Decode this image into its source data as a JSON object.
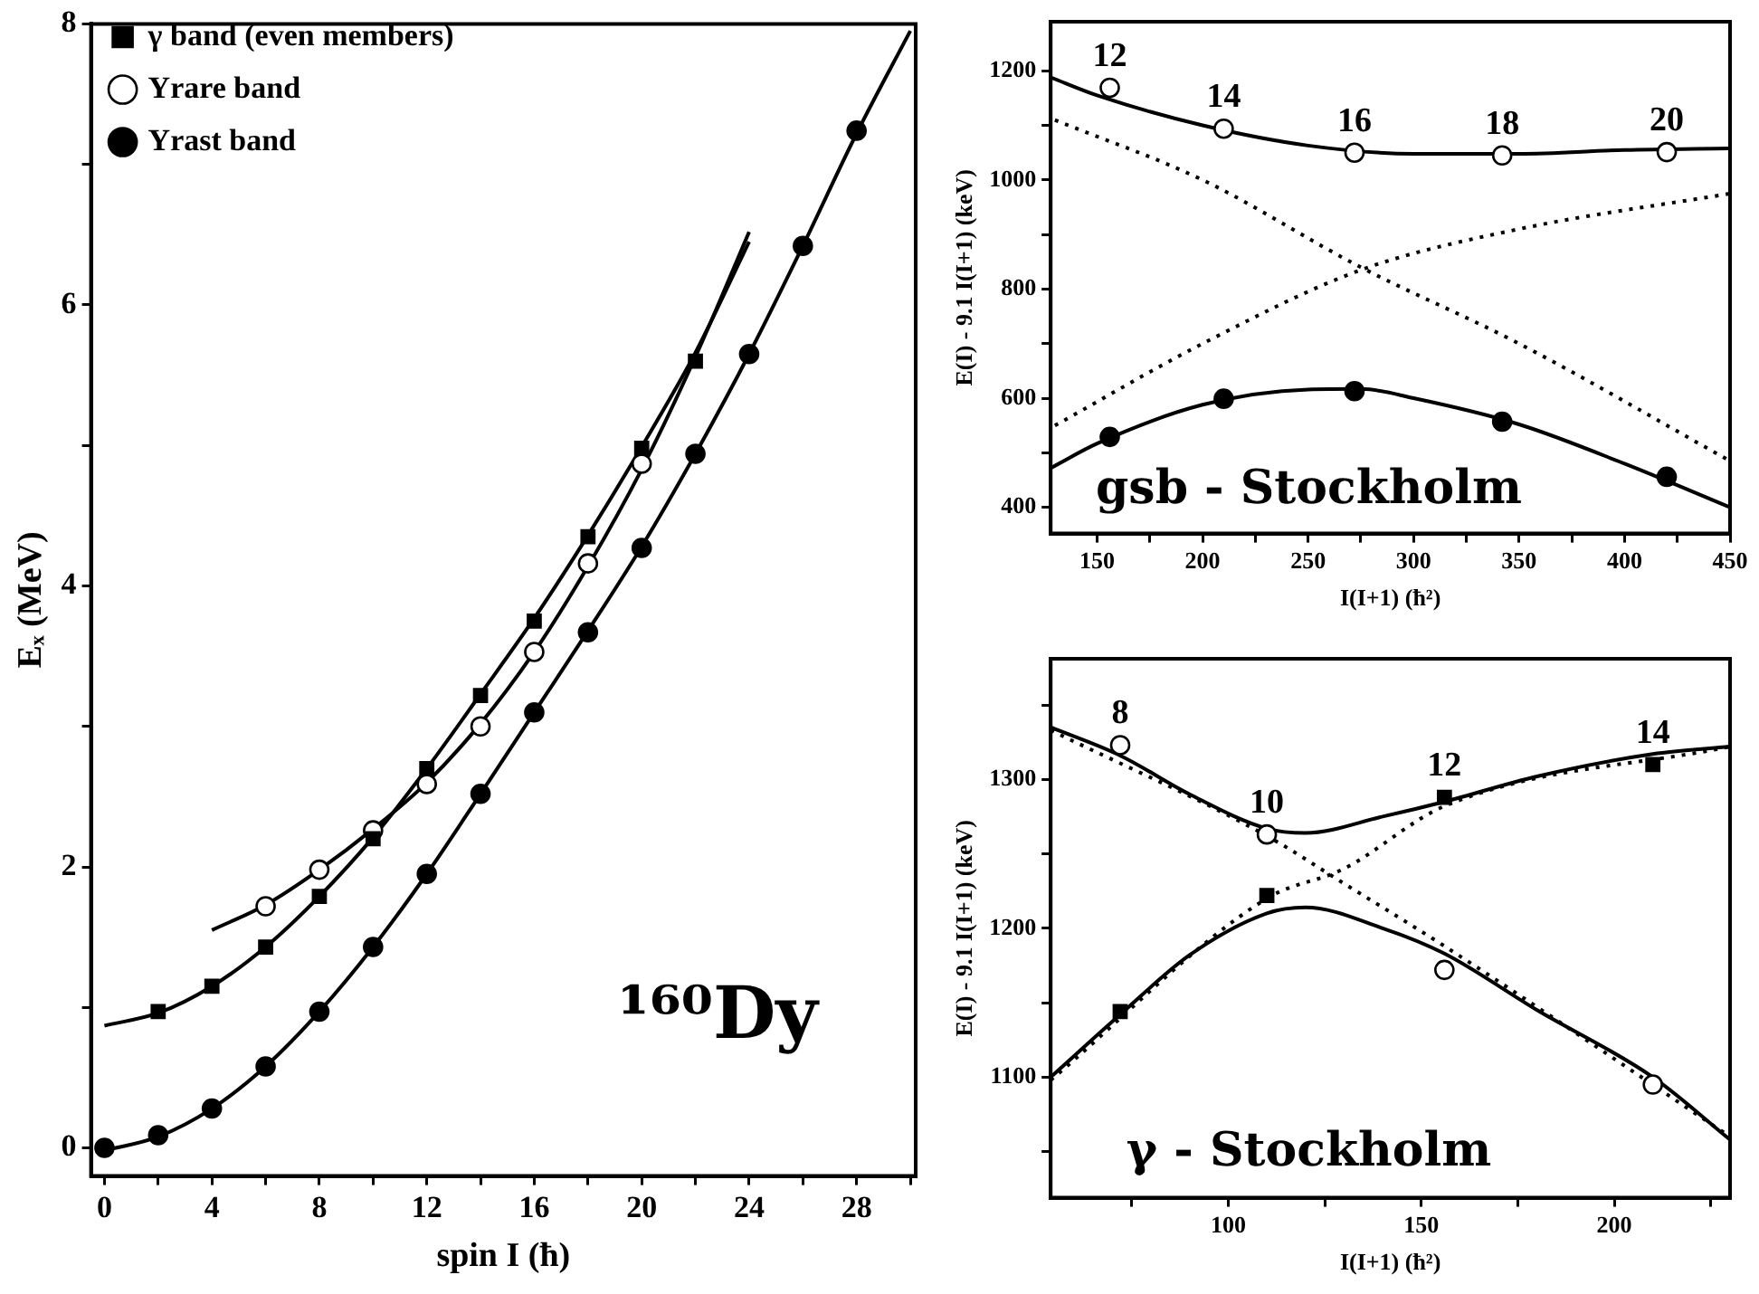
{
  "chart_data": [
    {
      "type": "scatter",
      "xlabel": "spin I (ħ)",
      "ylabel": "Eₓ (MeV)",
      "xlim": [
        -0.5,
        30.2
      ],
      "ylim": [
        -0.2,
        8
      ],
      "xticks": [
        0,
        {
          "value": 2,
          "label": null
        },
        4,
        {
          "value": 6,
          "label": null
        },
        8,
        {
          "value": 10,
          "label": null
        },
        12,
        {
          "value": 14,
          "label": null
        },
        16,
        {
          "value": 18,
          "label": null
        },
        20,
        {
          "value": 22,
          "label": null
        },
        24,
        {
          "value": 26,
          "label": null
        },
        28,
        {
          "value": 30,
          "label": null
        }
      ],
      "yticks": [
        0,
        {
          "value": 1,
          "label": null
        },
        2,
        {
          "value": 3,
          "label": null
        },
        4,
        {
          "value": 5,
          "label": null
        },
        6,
        {
          "value": 7,
          "label": null
        },
        8
      ],
      "legend": "top left",
      "annotations": [
        "¹⁶⁰Dy"
      ],
      "series": [
        {
          "name": "Yrast band",
          "type": "scatter",
          "marker": "circle",
          "color": "#000000",
          "x": [
            0,
            2,
            4,
            6,
            8,
            10,
            12,
            14,
            16,
            18,
            20,
            22,
            24,
            26,
            28
          ],
          "values": [
            0,
            0.09,
            0.28,
            0.58,
            0.97,
            1.43,
            1.95,
            2.52,
            3.1,
            3.67,
            4.27,
            4.94,
            5.65,
            6.42,
            7.24
          ]
        },
        {
          "name": "Yrare band",
          "type": "scatter",
          "marker": "circle",
          "color": "#ffffff",
          "x": [
            6,
            8,
            10,
            12,
            14,
            16,
            18,
            20
          ],
          "values": [
            1.72,
            1.98,
            2.26,
            2.59,
            3.0,
            3.53,
            4.16,
            4.87
          ]
        },
        {
          "name": "γ band (even members)",
          "type": "scatter",
          "marker": "square",
          "color": "#000000",
          "x": [
            2,
            4,
            6,
            8,
            10,
            12,
            14,
            16,
            18,
            20,
            22
          ],
          "values": [
            0.97,
            1.15,
            1.43,
            1.79,
            2.2,
            2.7,
            3.22,
            3.75,
            4.35,
            4.98,
            5.6
          ]
        },
        {
          "type": "line",
          "marker": "none",
          "line_style": "solid",
          "color": "#000000",
          "x": [
            0,
            2,
            4,
            6,
            8,
            10,
            12,
            14,
            16,
            18,
            20,
            22,
            24,
            26,
            28,
            30
          ],
          "values": [
            -0.02,
            0.08,
            0.28,
            0.58,
            0.97,
            1.43,
            1.95,
            2.52,
            3.1,
            3.68,
            4.28,
            4.94,
            5.65,
            6.42,
            7.22,
            7.95
          ]
        },
        {
          "type": "line",
          "marker": "none",
          "line_style": "solid",
          "color": "#000000",
          "x": [
            4,
            6,
            8,
            10,
            12,
            14,
            16,
            18,
            20,
            22,
            24
          ],
          "values": [
            1.55,
            1.73,
            1.98,
            2.27,
            2.6,
            3.02,
            3.53,
            4.14,
            4.83,
            5.63,
            6.52
          ]
        },
        {
          "type": "line",
          "marker": "none",
          "line_style": "solid",
          "color": "#000000",
          "x": [
            0,
            2,
            4,
            6,
            8,
            10,
            12,
            14,
            16,
            18,
            20,
            22,
            24
          ],
          "values": [
            0.87,
            0.96,
            1.15,
            1.43,
            1.79,
            2.21,
            2.7,
            3.23,
            3.77,
            4.36,
            4.99,
            5.66,
            6.45
          ]
        }
      ]
    },
    {
      "type": "scatter",
      "xlabel": "I(I+1) (ħ²)",
      "ylabel": "E(I) - 9.1 I(I+1) (keV)",
      "xlim": [
        128,
        450
      ],
      "ylim": [
        352,
        1290
      ],
      "xticks": [
        150,
        {
          "value": 175,
          "label": null
        },
        200,
        {
          "value": 225,
          "label": null
        },
        250,
        {
          "value": 275,
          "label": null
        },
        300,
        {
          "value": 325,
          "label": null
        },
        350,
        {
          "value": 375,
          "label": null
        },
        400,
        {
          "value": 425,
          "label": null
        },
        450
      ],
      "yticks": [
        400,
        {
          "value": 500,
          "label": null
        },
        600,
        {
          "value": 700,
          "label": null
        },
        800,
        {
          "value": 900,
          "label": null
        },
        1000,
        {
          "value": 1100,
          "label": null
        },
        1200
      ],
      "annotations": [
        {
          "text": "12",
          "x": 156,
          "y": 1169
        },
        {
          "text": "14",
          "x": 210,
          "y": 1094
        },
        {
          "text": "16",
          "x": 272,
          "y": 1050
        },
        {
          "text": "18",
          "x": 342,
          "y": 1045
        },
        {
          "text": "20",
          "x": 420,
          "y": 1051
        },
        "gsb - Stockholm"
      ],
      "series": [
        {
          "type": "scatter",
          "marker": "circle",
          "color": "#ffffff",
          "x": [
            156,
            210,
            272,
            342,
            420
          ],
          "values": [
            1169,
            1094,
            1050,
            1045,
            1051
          ]
        },
        {
          "type": "scatter",
          "marker": "circle",
          "color": "#000000",
          "x": [
            156,
            210,
            272,
            342,
            420
          ],
          "values": [
            529,
            599,
            613,
            557,
            456
          ]
        },
        {
          "type": "line",
          "marker": "none",
          "line_style": "solid",
          "color": "#000000",
          "x": [
            128,
            150,
            200,
            250,
            300,
            350,
            400,
            450
          ],
          "values": [
            1188,
            1155,
            1100,
            1063,
            1048,
            1048,
            1055,
            1058
          ]
        },
        {
          "type": "line",
          "marker": "none",
          "line_style": "solid",
          "color": "#000000",
          "x": [
            128,
            150,
            200,
            250,
            275,
            300,
            350,
            400,
            450
          ],
          "values": [
            472,
            517,
            588,
            616,
            617,
            600,
            552,
            480,
            400
          ]
        },
        {
          "type": "line",
          "marker": "none",
          "line_style": "dotted",
          "color": "#000000",
          "x": [
            130,
            200,
            275,
            350,
            450
          ],
          "values": [
            1110,
            1000,
            840,
            700,
            485
          ]
        },
        {
          "type": "line",
          "marker": "none",
          "line_style": "dotted",
          "color": "#000000",
          "x": [
            130,
            200,
            275,
            350,
            450
          ],
          "values": [
            550,
            700,
            835,
            910,
            975
          ]
        }
      ]
    },
    {
      "type": "scatter",
      "xlabel": "I(I+1) (ħ²)",
      "ylabel": "E(I) - 9.1 I(I+1) (keV)",
      "xlim": [
        54,
        230
      ],
      "ylim": [
        1019,
        1381
      ],
      "xticks": [
        {
          "value": 75,
          "label": null
        },
        100,
        {
          "value": 125,
          "label": null
        },
        150,
        {
          "value": 175,
          "label": null
        },
        200,
        {
          "value": 225,
          "label": null
        }
      ],
      "yticks": [
        {
          "value": 1050,
          "label": null
        },
        1100,
        {
          "value": 1150,
          "label": null
        },
        1200,
        {
          "value": 1250,
          "label": null
        },
        1300,
        {
          "value": 1350,
          "label": null
        }
      ],
      "annotations": [
        {
          "text": "8",
          "x": 72,
          "y": 1323
        },
        {
          "text": "10",
          "x": 110,
          "y": 1263
        },
        {
          "text": "12",
          "x": 156,
          "y": 1288
        },
        {
          "text": "14",
          "x": 210,
          "y": 1310
        },
        "γ - Stockholm"
      ],
      "series": [
        {
          "type": "scatter",
          "marker": "circle",
          "color": "#ffffff",
          "x": [
            72,
            110,
            156,
            210
          ],
          "values": [
            1323,
            1263,
            1172,
            1095
          ]
        },
        {
          "type": "scatter",
          "marker": "square",
          "color": "#000000",
          "x": [
            72,
            110,
            156,
            210
          ],
          "values": [
            1144,
            1222,
            1288,
            1310
          ]
        },
        {
          "type": "line",
          "marker": "none",
          "line_style": "solid",
          "color": "#000000",
          "x": [
            54,
            72,
            90,
            110,
            120,
            140,
            156,
            180,
            210,
            230
          ],
          "values": [
            1335,
            1316,
            1290,
            1267,
            1264,
            1275,
            1285,
            1302,
            1317,
            1322
          ]
        },
        {
          "type": "line",
          "marker": "none",
          "line_style": "solid",
          "color": "#000000",
          "x": [
            54,
            72,
            90,
            110,
            120,
            140,
            156,
            180,
            210,
            230
          ],
          "values": [
            1100,
            1142,
            1182,
            1210,
            1214,
            1200,
            1183,
            1145,
            1100,
            1058
          ]
        },
        {
          "type": "line",
          "marker": "none",
          "line_style": "dotted",
          "color": "#000000",
          "x": [
            54,
            110,
            130,
            156,
            230
          ],
          "values": [
            1333,
            1262,
            1230,
            1188,
            1060
          ]
        },
        {
          "type": "line",
          "marker": "none",
          "line_style": "dotted",
          "color": "#000000",
          "x": [
            54,
            110,
            130,
            156,
            230
          ],
          "values": [
            1098,
            1220,
            1240,
            1282,
            1322
          ]
        }
      ]
    }
  ]
}
